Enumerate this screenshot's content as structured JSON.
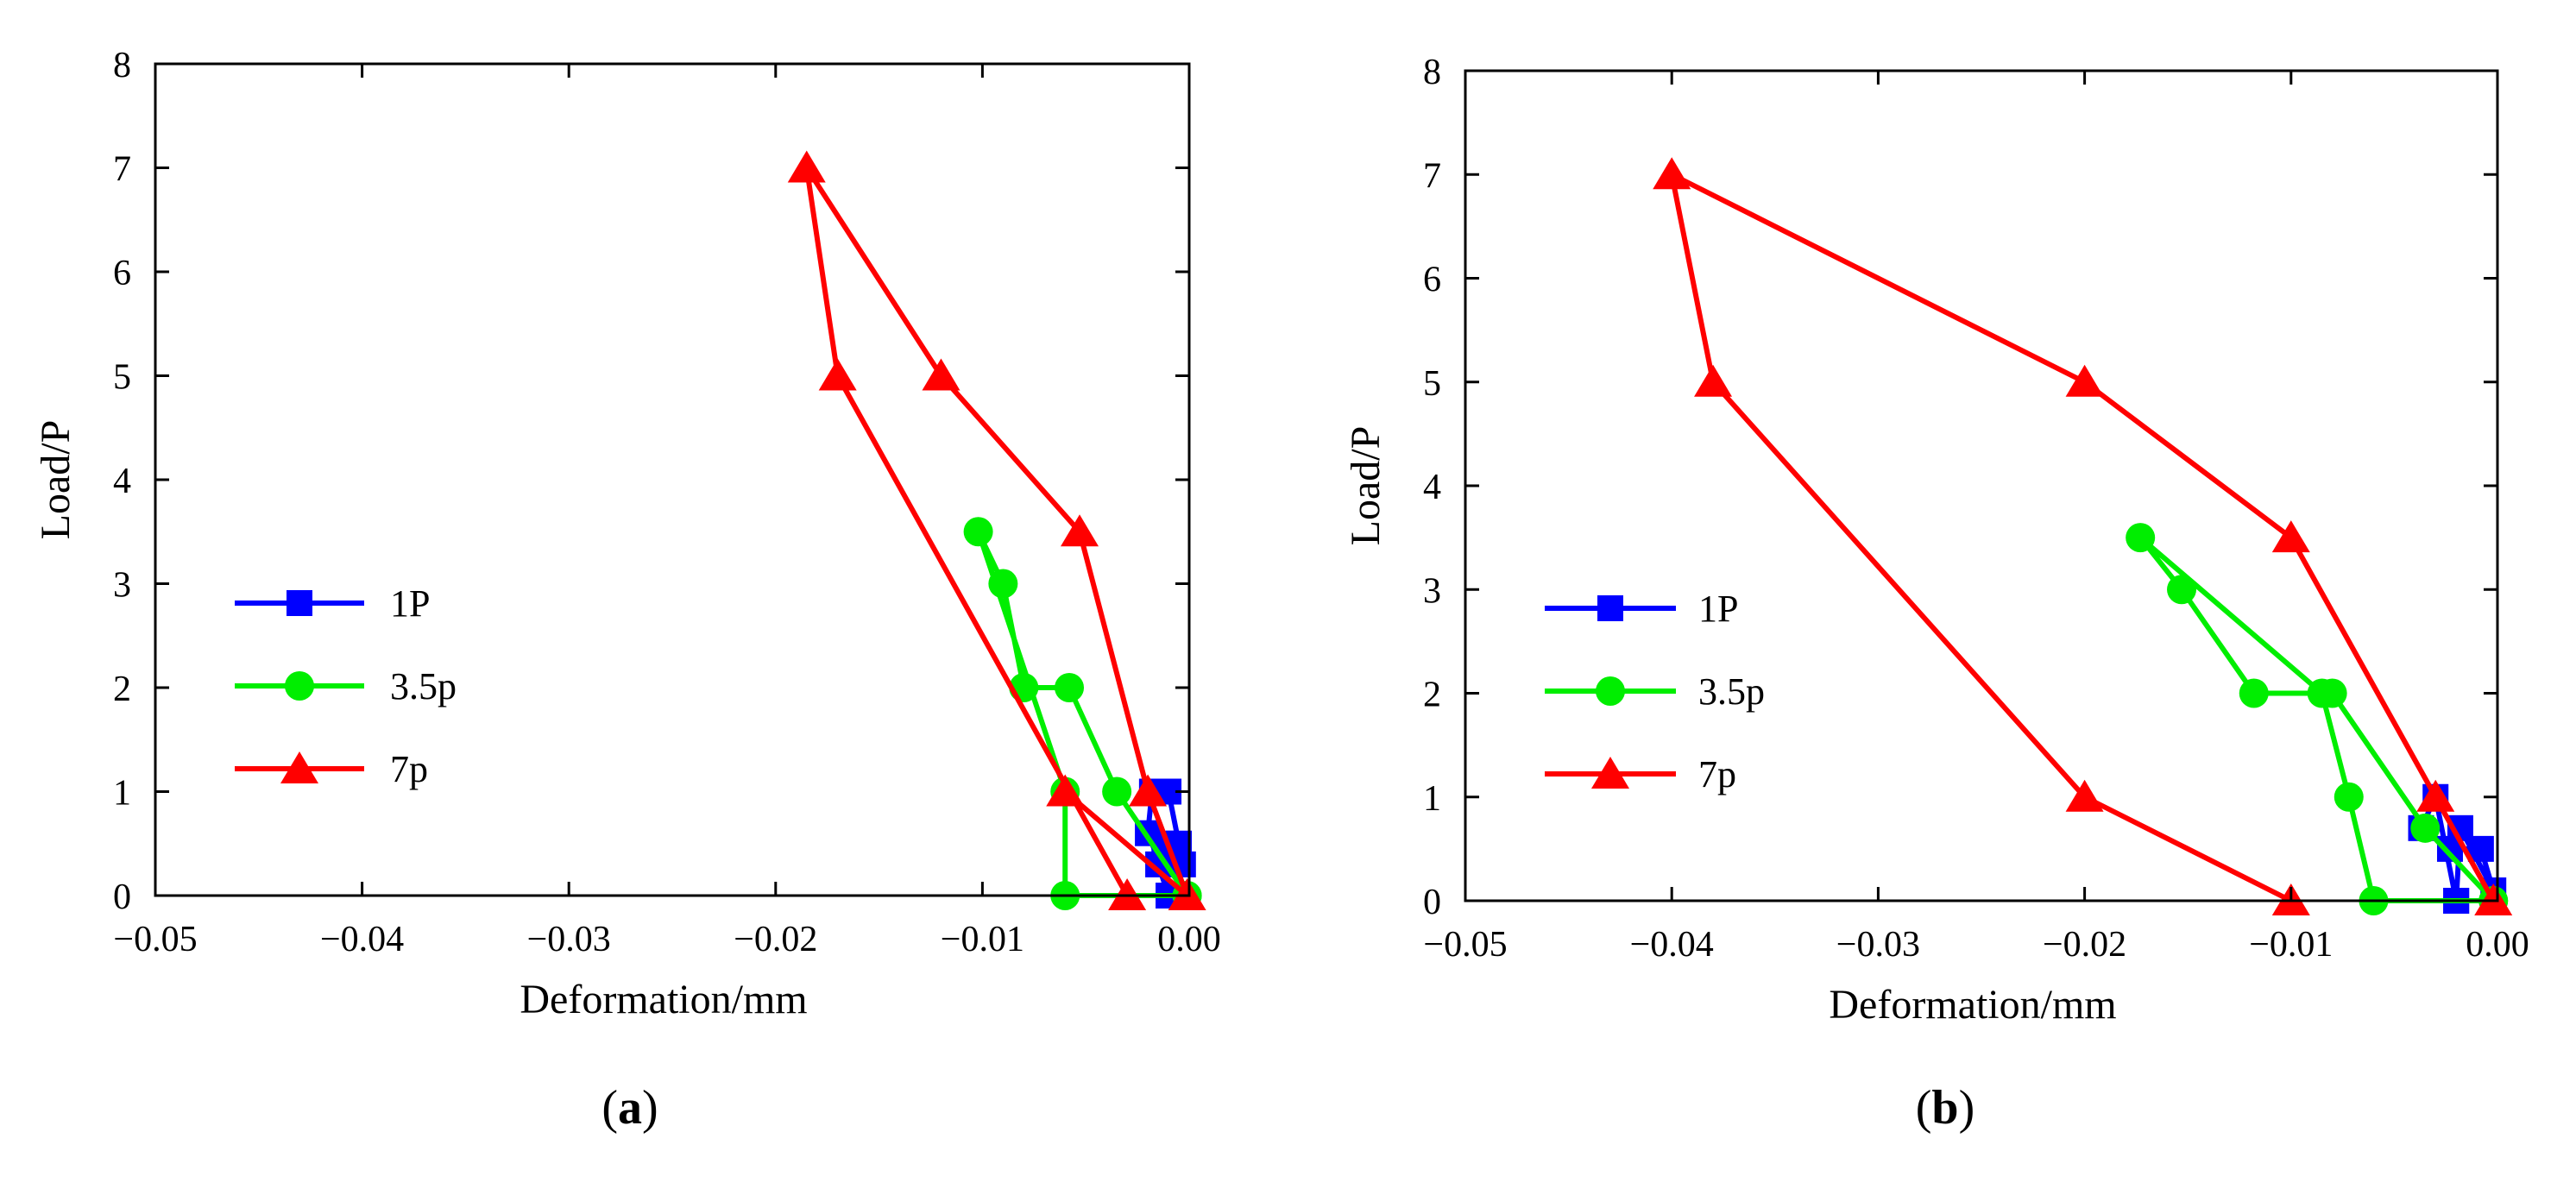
{
  "chart_data": [
    {
      "type": "line",
      "panel_label": "a",
      "xlabel": "Deformation/mm",
      "ylabel": "Load/P",
      "xlim": [
        -0.05,
        0.0
      ],
      "ylim": [
        0,
        8
      ],
      "xticks": [
        -0.05,
        -0.04,
        -0.03,
        -0.02,
        -0.01,
        0.0
      ],
      "xtick_labels": [
        "−0.05",
        "−0.04",
        "−0.03",
        "−0.02",
        "−0.01",
        "0.00"
      ],
      "yticks": [
        0,
        1,
        2,
        3,
        4,
        5,
        6,
        7,
        8
      ],
      "ytick_labels": [
        "0",
        "1",
        "2",
        "3",
        "4",
        "5",
        "6",
        "7",
        "8"
      ],
      "legend_position": "lower-left",
      "series": [
        {
          "name": "1P",
          "color": "#0000ff",
          "marker": "square",
          "x": [
            -0.001,
            -0.0015,
            -0.0012,
            -0.0005,
            -0.0003,
            -0.001,
            -0.0018,
            -0.002,
            -0.0008
          ],
          "y": [
            0,
            0.3,
            0.5,
            0.5,
            0.3,
            1.0,
            1.0,
            0.6,
            0
          ]
        },
        {
          "name": "3.5p",
          "color": "#00ee00",
          "marker": "circle",
          "x": [
            -0.0001,
            -0.0035,
            -0.0058,
            -0.008,
            -0.009,
            -0.0102,
            -0.006,
            -0.006,
            -0.0001
          ],
          "y": [
            0,
            1.0,
            2.0,
            2.0,
            3.0,
            3.5,
            1.0,
            0,
            0
          ]
        },
        {
          "name": "7p",
          "color": "#ff0000",
          "marker": "triangle",
          "x": [
            -0.003,
            -0.017,
            -0.0185,
            -0.012,
            -0.0053,
            -0.002,
            -0.0001,
            -0.006
          ],
          "y": [
            0,
            5.0,
            7.0,
            5.0,
            3.5,
            1.0,
            0,
            1.0
          ]
        }
      ]
    },
    {
      "type": "line",
      "panel_label": "b",
      "xlabel": "Deformation/mm",
      "ylabel": "Load/P",
      "xlim": [
        -0.05,
        0.0
      ],
      "ylim": [
        0,
        8
      ],
      "xticks": [
        -0.05,
        -0.04,
        -0.03,
        -0.02,
        -0.01,
        0.0
      ],
      "xtick_labels": [
        "−0.05",
        "−0.04",
        "−0.03",
        "−0.02",
        "−0.01",
        "0.00"
      ],
      "yticks": [
        0,
        1,
        2,
        3,
        4,
        5,
        6,
        7,
        8
      ],
      "ytick_labels": [
        "0",
        "1",
        "2",
        "3",
        "4",
        "5",
        "6",
        "7",
        "8"
      ],
      "legend_position": "lower-left",
      "series": [
        {
          "name": "1P",
          "color": "#0000ff",
          "marker": "square",
          "x": [
            -0.002,
            -0.003,
            -0.0037,
            -0.0023,
            -0.0008,
            -0.0002,
            -0.0018,
            -0.002
          ],
          "y": [
            0,
            1.0,
            0.7,
            0.5,
            0.5,
            0.1,
            0.7,
            0
          ]
        },
        {
          "name": "3.5p",
          "color": "#00ee00",
          "marker": "circle",
          "x": [
            -0.0002,
            -0.0035,
            -0.008,
            -0.0118,
            -0.0153,
            -0.0173,
            -0.0085,
            -0.0072,
            -0.006,
            -0.0002
          ],
          "y": [
            0,
            0.7,
            2.0,
            2.0,
            3.0,
            3.5,
            2.0,
            1.0,
            0,
            0
          ]
        },
        {
          "name": "7p",
          "color": "#ff0000",
          "marker": "triangle",
          "x": [
            -0.0002,
            -0.003,
            -0.01,
            -0.02,
            -0.04,
            -0.038,
            -0.02,
            -0.01
          ],
          "y": [
            0,
            1.0,
            3.5,
            5.0,
            7.0,
            5.0,
            1.0,
            0
          ]
        }
      ]
    }
  ]
}
